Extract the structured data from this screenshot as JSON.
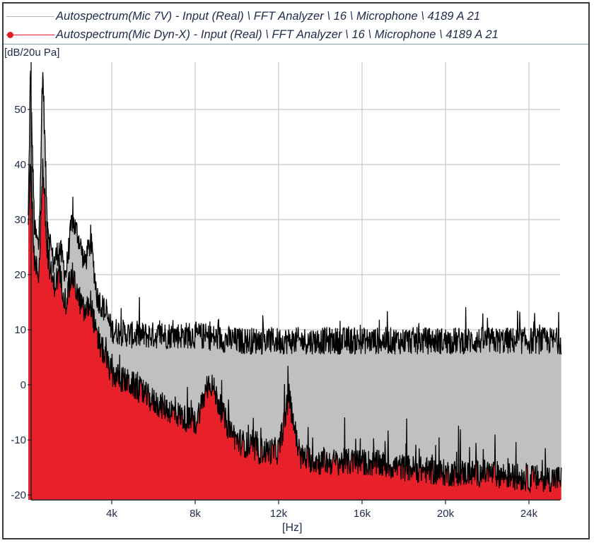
{
  "legend": {
    "items": [
      {
        "label": "Autospectrum(Mic 7V) - Input (Real) \\ FFT Analyzer \\ 16 \\ Microphone \\ 4189 A 21",
        "color": "#b4b4b4",
        "marker": "none"
      },
      {
        "label": "Autospectrum(Mic Dyn-X) - Input (Real) \\ FFT Analyzer \\ 16 \\ Microphone \\ 4189 A 21",
        "color": "#e31e24",
        "marker": "circle"
      }
    ]
  },
  "axes": {
    "y_unit": "[dB/20u Pa]",
    "x_unit": "[Hz]"
  },
  "colors": {
    "series_1_fill": "#c0c0c0",
    "series_2_fill": "#e8202a",
    "trace": "#000000",
    "grid": "#c8c8c8",
    "text": "#1f2a4a"
  },
  "chart_data": {
    "type": "area",
    "title": "",
    "xlabel": "[Hz]",
    "ylabel": "[dB/20u Pa]",
    "xlim": [
      0,
      25600
    ],
    "ylim": [
      -21,
      58
    ],
    "grid": true,
    "legend_position": "top",
    "x_ticks": [
      4000,
      8000,
      12000,
      16000,
      20000,
      24000
    ],
    "x_tick_labels": [
      "4k",
      "8k",
      "12k",
      "16k",
      "20k",
      "24k"
    ],
    "y_ticks": [
      -20,
      -10,
      0,
      10,
      20,
      30,
      40,
      50
    ],
    "y_tick_labels": [
      "-20",
      "-10",
      "0",
      "10",
      "20",
      "30",
      "40",
      "50"
    ],
    "series": [
      {
        "name": "Autospectrum(Mic 7V) - Input (Real) \\ FFT Analyzer \\ 16 \\ Microphone \\ 4189 A 21",
        "color": "#c0c0c0",
        "x": [
          0,
          100,
          300,
          500,
          700,
          900,
          1200,
          1500,
          1800,
          2100,
          2400,
          2700,
          3000,
          3300,
          3600,
          4000,
          5000,
          6000,
          7000,
          8000,
          10000,
          12000,
          14000,
          16000,
          18000,
          20000,
          22000,
          24000,
          25600
        ],
        "values": [
          30,
          57,
          28,
          25,
          57,
          30,
          22,
          25,
          20,
          30,
          27,
          22,
          26,
          16,
          14,
          10,
          9,
          9,
          9,
          9,
          8,
          8,
          8,
          8,
          8,
          8,
          8,
          8,
          8
        ]
      },
      {
        "name": "Autospectrum(Mic Dyn-X) - Input (Real) \\ FFT Analyzer \\ 16 \\ Microphone \\ 4189 A 21",
        "color": "#e8202a",
        "x": [
          0,
          100,
          300,
          500,
          700,
          900,
          1200,
          1500,
          1800,
          2100,
          2400,
          2700,
          3000,
          3300,
          3600,
          4000,
          5000,
          6000,
          7000,
          8000,
          8700,
          9500,
          10000,
          11000,
          12000,
          12500,
          13000,
          14000,
          16000,
          18000,
          20000,
          22000,
          24000,
          25600
        ],
        "values": [
          28,
          40,
          22,
          20,
          40,
          24,
          18,
          20,
          15,
          20,
          16,
          13,
          15,
          8,
          6,
          2,
          0,
          -3,
          -5,
          -7,
          1,
          -7,
          -10,
          -12,
          -12,
          -2,
          -13,
          -14,
          -14,
          -15,
          -16,
          -16,
          -17,
          -17
        ]
      }
    ]
  }
}
